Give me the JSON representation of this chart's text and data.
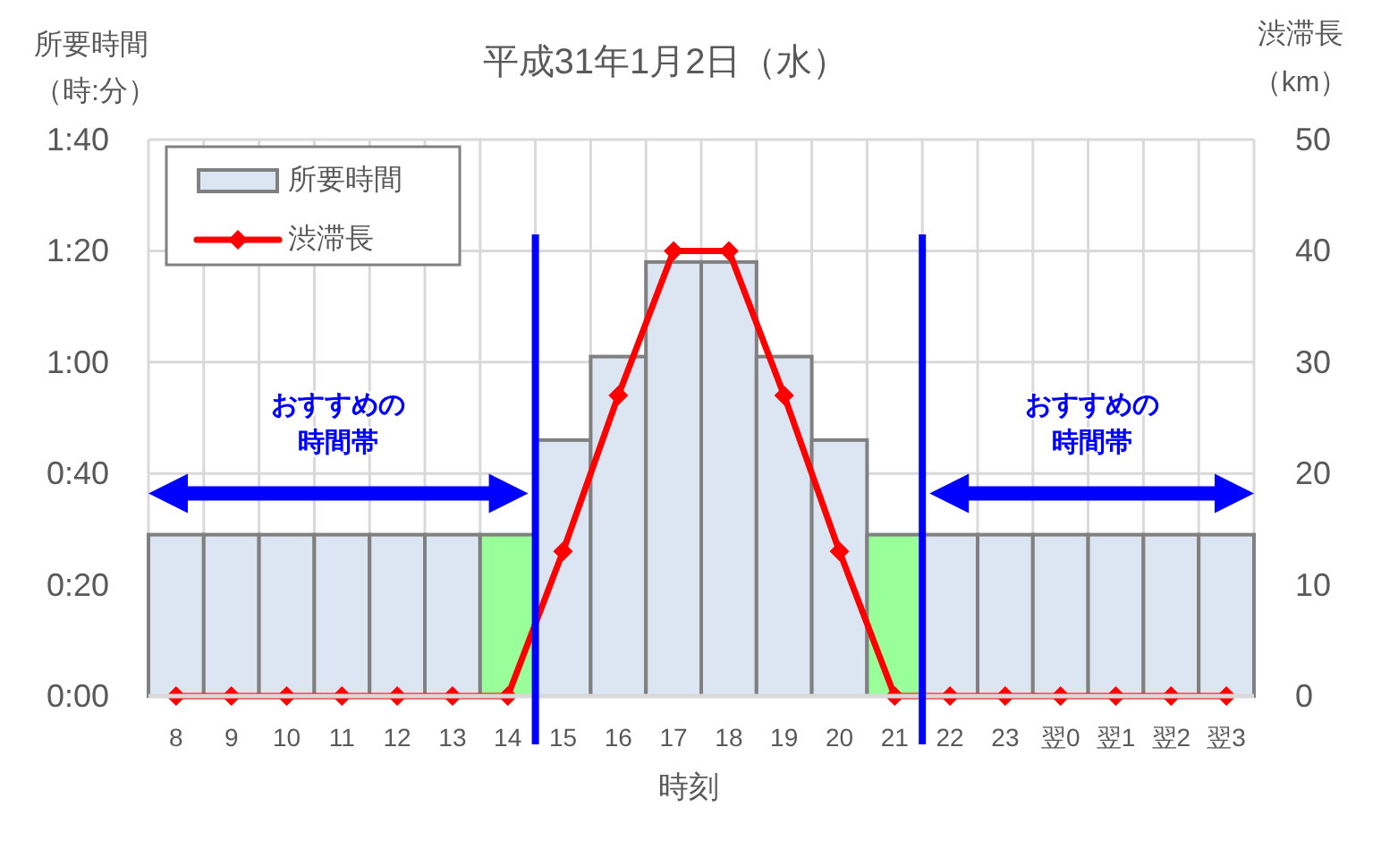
{
  "chart_data": {
    "type": "bar",
    "title": "平成31年1月2日（水）",
    "xlabel": "時刻",
    "ylabel": "所要時間（時:分）",
    "y2label": "渋滞長（km）",
    "categories": [
      "8",
      "9",
      "10",
      "11",
      "12",
      "13",
      "14",
      "15",
      "16",
      "17",
      "18",
      "19",
      "20",
      "21",
      "22",
      "23",
      "翌0",
      "翌1",
      "翌2",
      "翌3"
    ],
    "series": [
      {
        "name": "所要時間",
        "color": "#dce6f2",
        "colors": [
          "#dce6f2",
          "#dce6f2",
          "#dce6f2",
          "#dce6f2",
          "#dce6f2",
          "#dce6f2",
          "#99ff99",
          "#dce6f2",
          "#dce6f2",
          "#dce6f2",
          "#dce6f2",
          "#dce6f2",
          "#dce6f2",
          "#99ff99",
          "#dce6f2",
          "#dce6f2",
          "#dce6f2",
          "#dce6f2",
          "#dce6f2",
          "#dce6f2"
        ],
        "values": [
          29,
          29,
          29,
          29,
          29,
          29,
          29,
          46,
          61,
          78,
          78,
          61,
          46,
          29,
          29,
          29,
          29,
          29,
          29,
          29
        ]
      },
      {
        "name": "渋滞長",
        "type": "line",
        "axis": "y2",
        "color": "#ff0000",
        "values": [
          0,
          0,
          0,
          0,
          0,
          0,
          0,
          13,
          27,
          40,
          40,
          27,
          13,
          0,
          0,
          0,
          0,
          0,
          0,
          0
        ]
      }
    ],
    "ylim": [
      0,
      100
    ],
    "yticks": [
      {
        "value": 0,
        "label": "0:00"
      },
      {
        "value": 20,
        "label": "0:20"
      },
      {
        "value": 40,
        "label": "0:40"
      },
      {
        "value": 60,
        "label": "1:00"
      },
      {
        "value": 80,
        "label": "1:20"
      },
      {
        "value": 100,
        "label": "1:40"
      }
    ],
    "y2lim": [
      0,
      50
    ],
    "y2ticks": [
      0,
      10,
      20,
      30,
      40,
      50
    ],
    "grid": true,
    "legend": "top left",
    "marker": "diamond",
    "line_style": "solid",
    "annotations": [
      "おすすめの時間帯",
      "おすすめの時間帯"
    ]
  }
}
